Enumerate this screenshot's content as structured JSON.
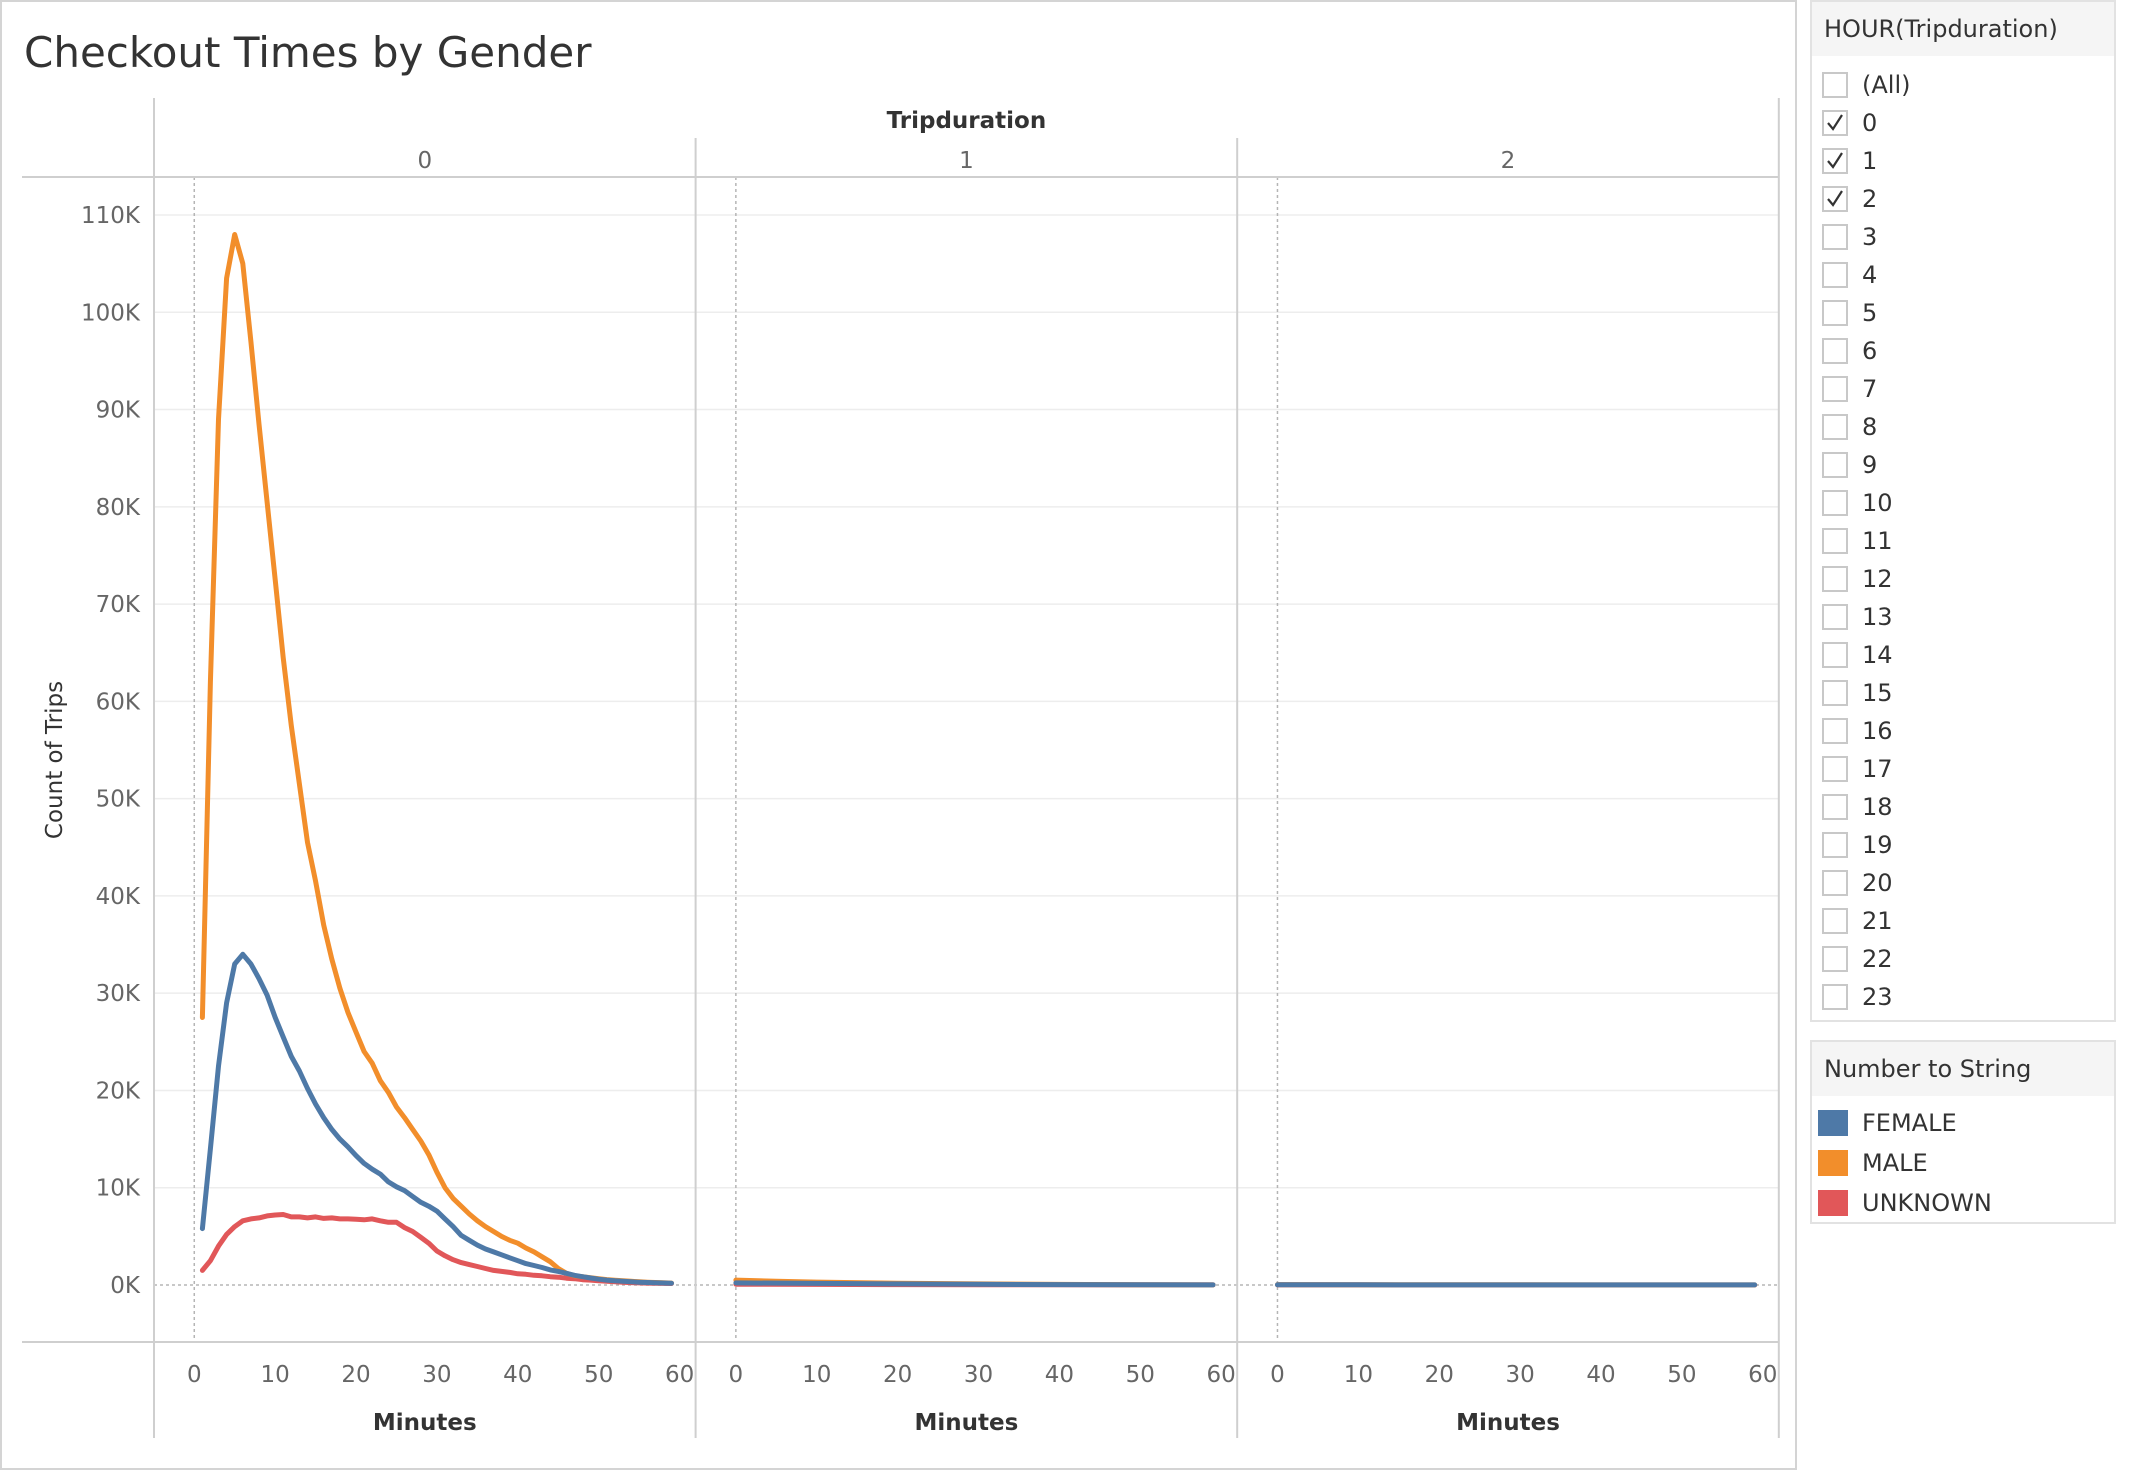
{
  "title": "Checkout Times by Gender",
  "filter": {
    "header": "HOUR(Tripduration)",
    "items": [
      {
        "label": "(All)",
        "checked": false
      },
      {
        "label": "0",
        "checked": true
      },
      {
        "label": "1",
        "checked": true
      },
      {
        "label": "2",
        "checked": true
      },
      {
        "label": "3",
        "checked": false
      },
      {
        "label": "4",
        "checked": false
      },
      {
        "label": "5",
        "checked": false
      },
      {
        "label": "6",
        "checked": false
      },
      {
        "label": "7",
        "checked": false
      },
      {
        "label": "8",
        "checked": false
      },
      {
        "label": "9",
        "checked": false
      },
      {
        "label": "10",
        "checked": false
      },
      {
        "label": "11",
        "checked": false
      },
      {
        "label": "12",
        "checked": false
      },
      {
        "label": "13",
        "checked": false
      },
      {
        "label": "14",
        "checked": false
      },
      {
        "label": "15",
        "checked": false
      },
      {
        "label": "16",
        "checked": false
      },
      {
        "label": "17",
        "checked": false
      },
      {
        "label": "18",
        "checked": false
      },
      {
        "label": "19",
        "checked": false
      },
      {
        "label": "20",
        "checked": false
      },
      {
        "label": "21",
        "checked": false
      },
      {
        "label": "22",
        "checked": false
      },
      {
        "label": "23",
        "checked": false
      }
    ]
  },
  "legend": {
    "header": "Number to String",
    "items": [
      {
        "label": "FEMALE",
        "color": "#4e79a7"
      },
      {
        "label": "MALE",
        "color": "#f28e2b"
      },
      {
        "label": "UNKNOWN",
        "color": "#e15759"
      }
    ]
  },
  "chart_data": {
    "type": "line",
    "title": "Checkout Times by Gender",
    "column_header": "Tripduration",
    "panels": [
      "0",
      "1",
      "2"
    ],
    "xlabel": "Minutes",
    "ylabel": "Count of Trips",
    "xlim": [
      -3,
      60
    ],
    "ylim": [
      0,
      110000
    ],
    "x_ticks": [
      0,
      10,
      20,
      30,
      40,
      50,
      60
    ],
    "x_tick_labels": [
      "0",
      "10",
      "20",
      "30",
      "40",
      "50",
      "60"
    ],
    "y_ticks": [
      0,
      10000,
      20000,
      30000,
      40000,
      50000,
      60000,
      70000,
      80000,
      90000,
      100000,
      110000
    ],
    "y_tick_labels": [
      "0K",
      "10K",
      "20K",
      "30K",
      "40K",
      "50K",
      "60K",
      "70K",
      "80K",
      "90K",
      "100K",
      "110K"
    ],
    "grid": true,
    "legend_position": "right",
    "series": [
      {
        "name": "FEMALE",
        "color": "#4e79a7",
        "panels": [
          {
            "x": [
              1,
              2,
              3,
              4,
              5,
              6,
              7,
              8,
              9,
              10,
              11,
              12,
              13,
              14,
              15,
              16,
              17,
              18,
              19,
              20,
              21,
              22,
              23,
              24,
              25,
              26,
              27,
              28,
              29,
              30,
              31,
              32,
              33,
              34,
              35,
              36,
              37,
              38,
              39,
              40,
              41,
              42,
              43,
              44,
              45,
              46,
              47,
              48,
              49,
              50,
              51,
              52,
              53,
              54,
              55,
              56,
              57,
              58,
              59
            ],
            "y": [
              5800,
              14000,
              22500,
              29000,
              33000,
              34000,
              33000,
              31500,
              29800,
              27500,
              25500,
              23500,
              22000,
              20200,
              18600,
              17200,
              16000,
              15000,
              14200,
              13300,
              12500,
              11900,
              11400,
              10600,
              10100,
              9700,
              9100,
              8500,
              8100,
              7600,
              6800,
              6000,
              5100,
              4600,
              4100,
              3700,
              3400,
              3100,
              2800,
              2500,
              2200,
              2000,
              1800,
              1550,
              1400,
              1200,
              1000,
              850,
              720,
              600,
              500,
              430,
              380,
              330,
              290,
              260,
              230,
              210,
              190
            ]
          },
          {
            "x": [
              0,
              10,
              20,
              30,
              40,
              50,
              59
            ],
            "y": [
              220,
              160,
              110,
              70,
              40,
              20,
              10
            ]
          },
          {
            "x": [
              0,
              10,
              20,
              30,
              40,
              50,
              59
            ],
            "y": [
              25,
              20,
              15,
              12,
              10,
              8,
              6
            ]
          }
        ]
      },
      {
        "name": "MALE",
        "color": "#f28e2b",
        "panels": [
          {
            "x": [
              1,
              2,
              3,
              4,
              5,
              6,
              7,
              8,
              9,
              10,
              11,
              12,
              13,
              14,
              15,
              16,
              17,
              18,
              19,
              20,
              21,
              22,
              23,
              24,
              25,
              26,
              27,
              28,
              29,
              30,
              31,
              32,
              33,
              34,
              35,
              36,
              37,
              38,
              39,
              40,
              41,
              42,
              43,
              44,
              45,
              46,
              47,
              48,
              49,
              50,
              51,
              52,
              53,
              54,
              55,
              56,
              57,
              58,
              59
            ],
            "y": [
              27500,
              62000,
              89000,
              103500,
              108000,
              105000,
              97000,
              88500,
              80500,
              72500,
              64500,
              57500,
              51500,
              45500,
              41500,
              37000,
              33500,
              30500,
              28000,
              26000,
              24000,
              22800,
              21000,
              19800,
              18300,
              17200,
              16000,
              14800,
              13400,
              11600,
              10000,
              8900,
              8100,
              7300,
              6600,
              6000,
              5500,
              5000,
              4600,
              4300,
              3800,
              3400,
              2900,
              2400,
              1700,
              1200,
              950,
              850,
              750,
              650,
              560,
              490,
              430,
              380,
              330,
              290,
              260,
              230,
              200
            ]
          },
          {
            "x": [
              0,
              5,
              10,
              20,
              30,
              40,
              50,
              59
            ],
            "y": [
              500,
              380,
              300,
              180,
              110,
              60,
              30,
              15
            ]
          },
          {
            "x": [
              0,
              10,
              20,
              30,
              40,
              50,
              59
            ],
            "y": [
              40,
              30,
              22,
              16,
              12,
              9,
              6
            ]
          }
        ]
      },
      {
        "name": "UNKNOWN",
        "color": "#e15759",
        "panels": [
          {
            "x": [
              1,
              2,
              3,
              4,
              5,
              6,
              7,
              8,
              9,
              10,
              11,
              12,
              13,
              14,
              15,
              16,
              17,
              18,
              19,
              20,
              21,
              22,
              23,
              24,
              25,
              26,
              27,
              28,
              29,
              30,
              31,
              32,
              33,
              34,
              35,
              36,
              37,
              38,
              39,
              40,
              41,
              42,
              43,
              44,
              45,
              46,
              47,
              48,
              49,
              50,
              51,
              52,
              53,
              54,
              55,
              56,
              57,
              58,
              59
            ],
            "y": [
              1500,
              2500,
              4000,
              5200,
              6000,
              6600,
              6800,
              6900,
              7100,
              7200,
              7250,
              7000,
              7000,
              6900,
              7000,
              6850,
              6900,
              6800,
              6800,
              6750,
              6700,
              6800,
              6600,
              6450,
              6450,
              5900,
              5500,
              4900,
              4300,
              3500,
              3000,
              2600,
              2300,
              2100,
              1900,
              1700,
              1500,
              1400,
              1300,
              1150,
              1100,
              1000,
              950,
              850,
              800,
              700,
              650,
              550,
              500,
              430,
              380,
              330,
              290,
              250,
              220,
              200,
              180,
              160,
              150
            ]
          },
          {
            "x": [
              0,
              10,
              20,
              30,
              40,
              50,
              59
            ],
            "y": [
              80,
              60,
              40,
              30,
              20,
              12,
              8
            ]
          },
          {
            "x": [
              0,
              10,
              20,
              30,
              40,
              50,
              59
            ],
            "y": [
              8,
              6,
              5,
              4,
              3,
              2,
              2
            ]
          }
        ]
      }
    ]
  }
}
